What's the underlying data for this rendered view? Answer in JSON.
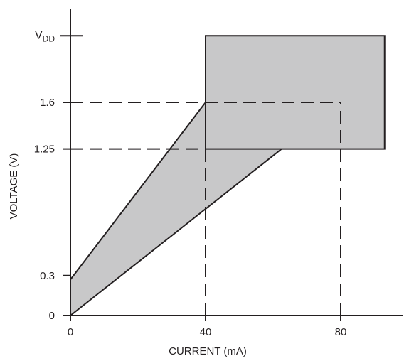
{
  "chart_data": {
    "type": "area",
    "xlabel": "CURRENT (mA)",
    "ylabel": "VOLTAGE (V)",
    "x_ticks": [
      "0",
      "40",
      "80"
    ],
    "x_tick_values": [
      0,
      40,
      80
    ],
    "y_ticks": [
      "0",
      "0.3",
      "1.25",
      "1.6"
    ],
    "y_tick_values": [
      0,
      0.3,
      1.25,
      1.6
    ],
    "y_top_label": {
      "main": "V",
      "sub": "DD"
    },
    "xlim": [
      0,
      98
    ],
    "ylim": [
      0,
      2.17
    ],
    "vdd_level": 2.1,
    "regions": [
      {
        "shape": "polygon",
        "points": [
          [
            0,
            0
          ],
          [
            0,
            0.27
          ],
          [
            40,
            1.6
          ],
          [
            80,
            1.6
          ]
        ],
        "fill": "#c8c8c9"
      },
      {
        "shape": "rect",
        "x": [
          40,
          93
        ],
        "y": [
          1.25,
          2.1
        ],
        "fill": "#c8c8c9"
      }
    ],
    "reference_lines": [
      {
        "from": [
          0,
          1.6
        ],
        "to": [
          80,
          1.6
        ],
        "style": "dashed"
      },
      {
        "from": [
          0,
          1.25
        ],
        "to": [
          40,
          1.25
        ],
        "style": "dashed"
      },
      {
        "from": [
          40,
          0
        ],
        "to": [
          40,
          1.6
        ],
        "style": "dashed"
      },
      {
        "from": [
          80,
          0
        ],
        "to": [
          80,
          1.6
        ],
        "style": "dashed"
      }
    ],
    "grid": false,
    "colors": {
      "ink": "#231f20",
      "fill": "#c8c8c9"
    }
  }
}
